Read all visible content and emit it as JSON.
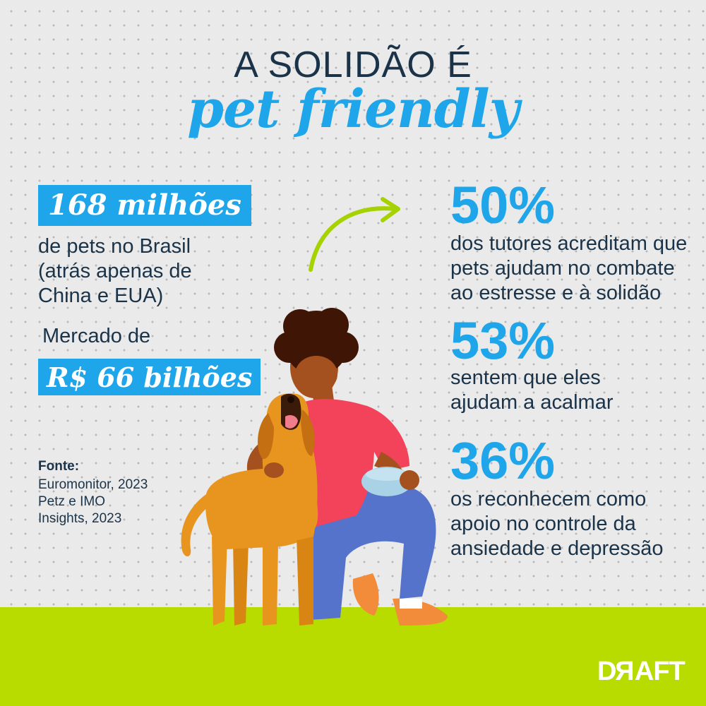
{
  "title": {
    "line1": "A SOLIDÃO É",
    "line2": "pet friendly"
  },
  "left": {
    "pets_highlight": "168 milhões",
    "pets_desc_lines": [
      "de pets no Brasil",
      "(atrás apenas de",
      "China e EUA)"
    ],
    "market_label": "Mercado de",
    "market_highlight": "R$ 66 bilhões"
  },
  "stats": [
    {
      "value": "50%",
      "lines": [
        "dos tutores acreditam que",
        "pets ajudam no combate",
        "ao estresse e à solidão"
      ]
    },
    {
      "value": "53%",
      "lines": [
        "sentem que eles",
        "ajudam a acalmar"
      ]
    },
    {
      "value": "36%",
      "lines": [
        "os reconhecem como",
        "apoio no controle da",
        "ansiedade e depressão"
      ]
    }
  ],
  "source": {
    "label": "Fonte:",
    "lines": [
      "Euromonitor, 2023",
      "Petz e IMO",
      "Insights, 2023"
    ]
  },
  "logo": {
    "prefix": "D",
    "reversed": "R",
    "suffix": "AFT"
  },
  "colors": {
    "background": "#eaeaea",
    "title_dark": "#1b3348",
    "accent_blue": "#1ea5ea",
    "ground_green": "#b8dc00",
    "arrow_green": "#a5d200",
    "shirt": "#f2435a",
    "pants": "#5673cc",
    "skin": "#a4511f",
    "hair": "#3f1506",
    "dog": "#e8951f",
    "bowl": "#a9d2e6",
    "shoes": "#f28b3a"
  },
  "icons": [
    "curved-arrow-icon"
  ]
}
